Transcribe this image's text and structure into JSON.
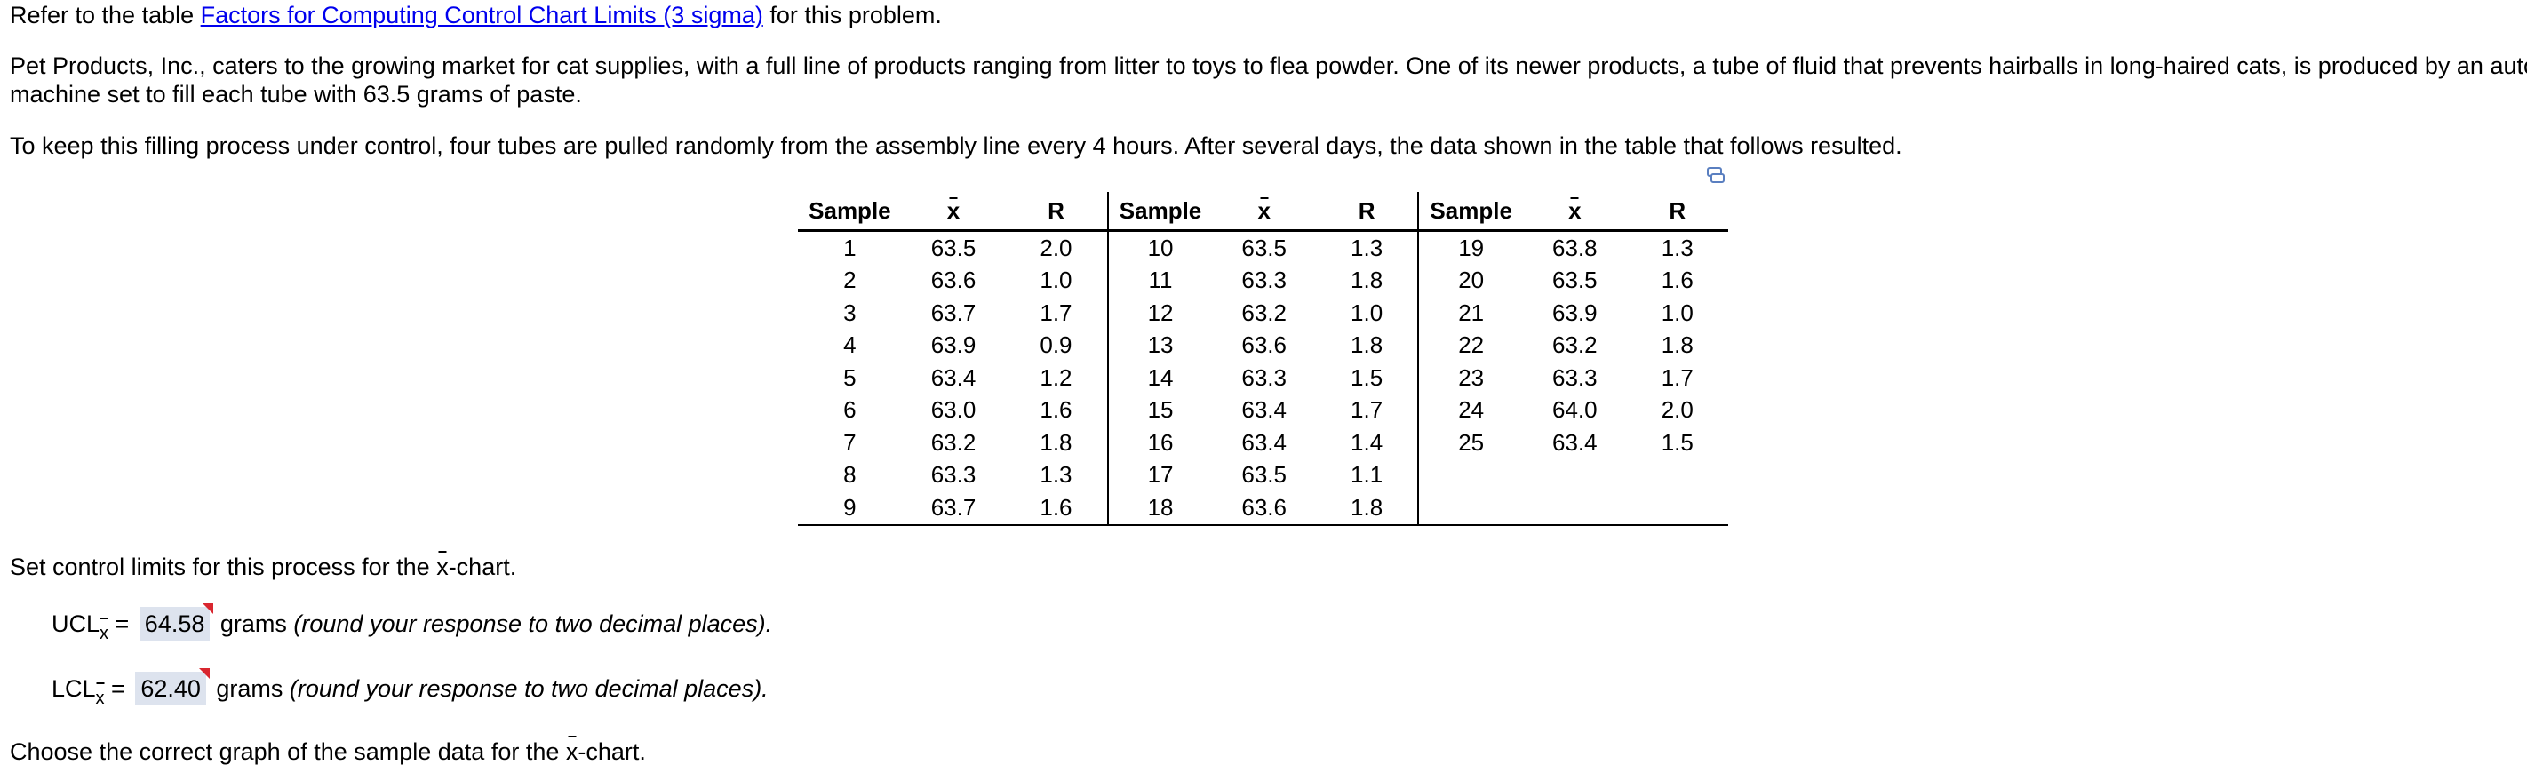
{
  "intro": {
    "prefix": "Refer to the table ",
    "link": "Factors for Computing Control Chart Limits (3 sigma)",
    "suffix": " for this problem."
  },
  "paragraph1_line1": "Pet Products, Inc., caters to the growing market for cat supplies, with a full line of products ranging from litter to toys to flea powder. One of its newer products, a tube of fluid that prevents hairballs in long-haired cats, is produced by an automated",
  "paragraph1_line2": "machine set to fill each tube with 63.5 grams of paste.",
  "paragraph2": "To keep this filling process under control, four tubes are pulled randomly from the assembly line every 4 hours. After several days, the data shown in the table that follows resulted.",
  "table": {
    "headers": [
      "Sample",
      "x",
      "R",
      "Sample",
      "x",
      "R",
      "Sample",
      "x",
      "R"
    ],
    "rows": [
      [
        "1",
        "63.5",
        "2.0",
        "10",
        "63.5",
        "1.3",
        "19",
        "63.8",
        "1.3"
      ],
      [
        "2",
        "63.6",
        "1.0",
        "11",
        "63.3",
        "1.8",
        "20",
        "63.5",
        "1.6"
      ],
      [
        "3",
        "63.7",
        "1.7",
        "12",
        "63.2",
        "1.0",
        "21",
        "63.9",
        "1.0"
      ],
      [
        "4",
        "63.9",
        "0.9",
        "13",
        "63.6",
        "1.8",
        "22",
        "63.2",
        "1.8"
      ],
      [
        "5",
        "63.4",
        "1.2",
        "14",
        "63.3",
        "1.5",
        "23",
        "63.3",
        "1.7"
      ],
      [
        "6",
        "63.0",
        "1.6",
        "15",
        "63.4",
        "1.7",
        "24",
        "64.0",
        "2.0"
      ],
      [
        "7",
        "63.2",
        "1.8",
        "16",
        "63.4",
        "1.4",
        "25",
        "63.4",
        "1.5"
      ],
      [
        "8",
        "63.3",
        "1.3",
        "17",
        "63.5",
        "1.1",
        "",
        "",
        ""
      ],
      [
        "9",
        "63.7",
        "1.6",
        "18",
        "63.6",
        "1.8",
        "",
        "",
        ""
      ]
    ]
  },
  "set_limits": {
    "prefix": "Set control limits for this process for the ",
    "x": "x",
    "suffix": "-chart."
  },
  "ucl": {
    "label": "UCL",
    "sub": "x",
    "equals": " = ",
    "value": "64.58",
    "unit": " grams ",
    "note": "(round your response to two decimal places)."
  },
  "lcl": {
    "label": "LCL",
    "sub": "x",
    "equals": " = ",
    "value": "62.40",
    "unit": " grams ",
    "note": "(round your response to two decimal places)."
  },
  "choose_graph": {
    "prefix": "Choose the correct graph of the sample data for the ",
    "x": "x",
    "suffix": "-chart."
  },
  "colors": {
    "link": "#0000ee",
    "answer_bg": "#dde3ee",
    "flag": "#d9262f"
  },
  "icons": {
    "table_copy": "copy-table-icon"
  }
}
